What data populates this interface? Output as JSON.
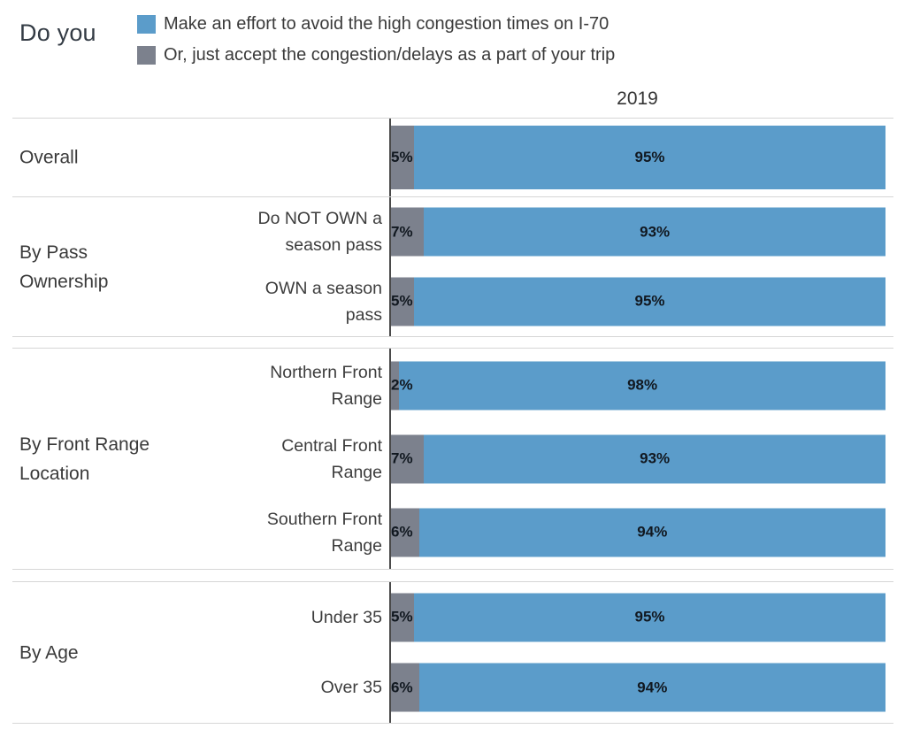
{
  "chart_data": {
    "type": "bar",
    "subtype": "horizontal-100pct-stacked",
    "title": "Do you",
    "column_header": "2019",
    "legend_position": "top",
    "legend": [
      {
        "label": "Make an effort to avoid the high congestion times on I-70",
        "color": "#5b9cca",
        "series_key": "avoid"
      },
      {
        "label": "Or, just accept the congestion/delays as a part of your trip",
        "color": "#7c818d",
        "series_key": "accept"
      }
    ],
    "stack_order_note": "accept (gray) segment on left at axis, avoid (blue) segment on right",
    "axis_range_pct": [
      0,
      100
    ],
    "sections": [
      {
        "group": "Overall",
        "rows": [
          {
            "label": "",
            "accept_pct": 5,
            "accept_text": "5%",
            "avoid_pct": 95,
            "avoid_text": "95%"
          }
        ]
      },
      {
        "group": "By Pass Ownership",
        "rows": [
          {
            "label": "Do NOT OWN a season pass",
            "accept_pct": 7,
            "accept_text": "7%",
            "avoid_pct": 93,
            "avoid_text": "93%"
          },
          {
            "label": "OWN a season pass",
            "accept_pct": 5,
            "accept_text": "5%",
            "avoid_pct": 95,
            "avoid_text": "95%"
          }
        ]
      },
      {
        "group": "By Front Range Location",
        "rows": [
          {
            "label": "Northern Front Range",
            "accept_pct": 2,
            "accept_text": "2%",
            "avoid_pct": 98,
            "avoid_text": "98%"
          },
          {
            "label": "Central Front Range",
            "accept_pct": 7,
            "accept_text": "7%",
            "avoid_pct": 93,
            "avoid_text": "93%"
          },
          {
            "label": "Southern Front Range",
            "accept_pct": 6,
            "accept_text": "6%",
            "avoid_pct": 94,
            "avoid_text": "94%"
          }
        ]
      },
      {
        "group": "By Age",
        "rows": [
          {
            "label": "Under 35",
            "accept_pct": 5,
            "accept_text": "5%",
            "avoid_pct": 95,
            "avoid_text": "95%"
          },
          {
            "label": "Over 35",
            "accept_pct": 6,
            "accept_text": "6%",
            "avoid_pct": 94,
            "avoid_text": "94%"
          }
        ]
      }
    ],
    "colors": {
      "avoid_blue": "#5b9cca",
      "accept_gray": "#7c818d",
      "axis_line": "#4a4a4a",
      "rule_line": "#d6d6d6",
      "label_text": "#3c3c3c",
      "value_text": "#111820"
    }
  }
}
